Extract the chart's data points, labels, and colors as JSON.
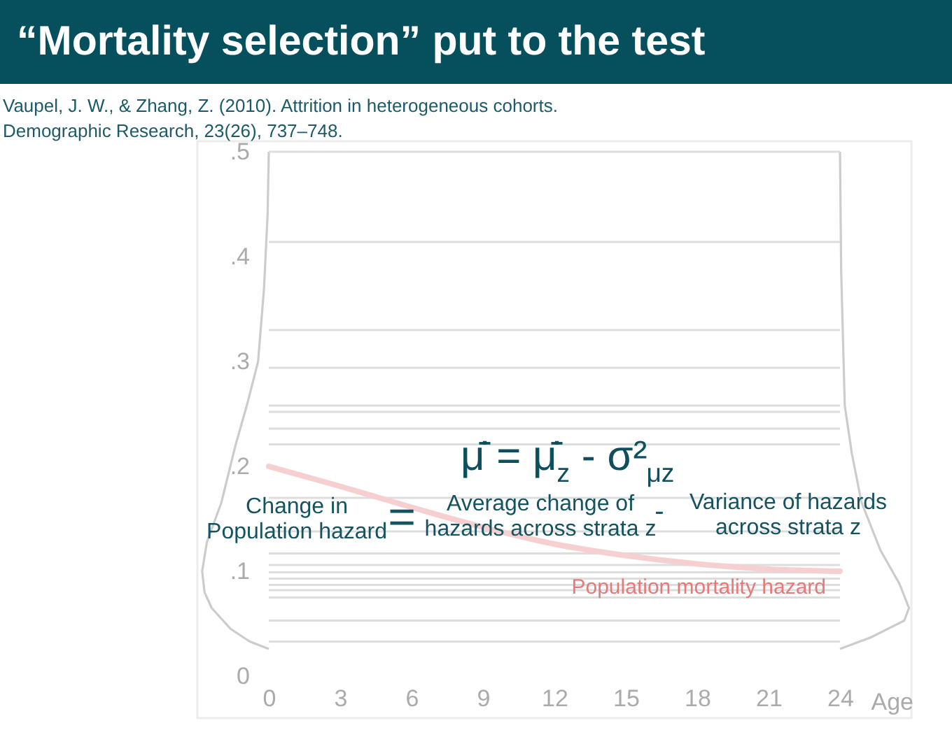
{
  "chart_data": {
    "type": "line",
    "title": "“Mortality selection” put to the test",
    "xlabel": "Age",
    "annotations": [
      "Vaupel, J. W., & Zhang, Z. (2010). Attrition in heterogeneous cohorts.\nDemographic Research, 23(26), 737–748.",
      "μ̄̇ = μ̇̄$_{z}$ - σ²$_{μz}$",
      "Change in\nPopulation hazard",
      "=",
      "Average change of\nhazards across strata z",
      "-",
      "Variance of hazards\nacross strata z"
    ],
    "xlim": [
      -3,
      27
    ],
    "ylim": [
      -0.04,
      0.51
    ],
    "xticks": [
      0,
      3,
      6,
      9,
      12,
      15,
      18,
      21,
      24
    ],
    "yticks": [
      0,
      {
        "value": 0.1,
        "label": ".1"
      },
      {
        "value": 0.2,
        "label": ".2"
      },
      {
        "value": 0.3,
        "label": ".3"
      },
      {
        "value": 0.4,
        "label": ".4"
      },
      {
        "value": 0.5,
        "label": ".5"
      }
    ],
    "grid": false,
    "legend": false,
    "marker": "none",
    "series": [
      {
        "color": "#cccccc",
        "x": [
          0,
          -0.05,
          -0.2,
          -0.45,
          -0.9,
          -1.4,
          -2.0,
          -2.6,
          -2.8,
          -2.7,
          -2.4,
          -1.6,
          -0.8,
          0
        ],
        "values": [
          0.5,
          0.44,
          0.37,
          0.3,
          0.26,
          0.22,
          0.165,
          0.128,
          0.1,
          0.08,
          0.065,
          0.045,
          0.033,
          0.026
        ]
      },
      {
        "color": "#cccccc",
        "x": [
          24,
          24.05,
          24.2,
          24.5,
          24.9,
          25.7,
          26.5,
          26.9,
          26.7,
          25.3,
          24
        ],
        "values": [
          0.5,
          0.386,
          0.258,
          0.212,
          0.166,
          0.12,
          0.088,
          0.065,
          0.053,
          0.037,
          0.026
        ]
      },
      {
        "color": "#dddddd",
        "x": [
          0,
          24
        ],
        "values": [
          0.5,
          0.5
        ]
      },
      {
        "color": "#dddddd",
        "x": [
          0,
          24
        ],
        "values": [
          0.414,
          0.414
        ]
      },
      {
        "color": "#dddddd",
        "x": [
          0,
          24
        ],
        "values": [
          0.33,
          0.33
        ]
      },
      {
        "color": "#dddddd",
        "x": [
          0,
          24
        ],
        "values": [
          0.294,
          0.294
        ]
      },
      {
        "color": "#dddddd",
        "x": [
          0,
          24
        ],
        "values": [
          0.258,
          0.258
        ]
      },
      {
        "color": "#dddddd",
        "x": [
          0,
          24
        ],
        "values": [
          0.252,
          0.252
        ]
      },
      {
        "color": "#dddddd",
        "x": [
          0,
          24
        ],
        "values": [
          0.236,
          0.236
        ]
      },
      {
        "color": "#dddddd",
        "x": [
          0,
          24
        ],
        "values": [
          0.221,
          0.221
        ]
      },
      {
        "color": "#dddddd",
        "x": [
          0,
          24
        ],
        "values": [
          0.17,
          0.17
        ]
      },
      {
        "color": "#dddddd",
        "x": [
          0,
          24
        ],
        "values": [
          0.138,
          0.138
        ]
      },
      {
        "color": "#dddddd",
        "x": [
          0,
          24
        ],
        "values": [
          0.117,
          0.117
        ]
      },
      {
        "color": "#dddddd",
        "x": [
          0,
          24
        ],
        "values": [
          0.106,
          0.106
        ]
      },
      {
        "color": "#dddddd",
        "x": [
          0,
          24
        ],
        "values": [
          0.099,
          0.099
        ]
      },
      {
        "color": "#dddddd",
        "x": [
          0,
          24
        ],
        "values": [
          0.093,
          0.093
        ]
      },
      {
        "color": "#dddddd",
        "x": [
          0,
          24
        ],
        "values": [
          0.087,
          0.087
        ]
      },
      {
        "color": "#dddddd",
        "x": [
          0,
          24
        ],
        "values": [
          0.082,
          0.082
        ]
      },
      {
        "color": "#dddddd",
        "x": [
          0,
          24
        ],
        "values": [
          0.075,
          0.075
        ]
      },
      {
        "color": "#dddddd",
        "x": [
          0,
          24
        ],
        "values": [
          0.053,
          0.053
        ]
      },
      {
        "color": "#dddddd",
        "x": [
          0,
          24
        ],
        "values": [
          0.033,
          0.033
        ]
      },
      {
        "name": "Population mortality hazard",
        "color": "#f6d0d0",
        "x": [
          0,
          3,
          6,
          9,
          12,
          15,
          18,
          21,
          24
        ],
        "values": [
          0.2,
          0.181,
          0.161,
          0.142,
          0.126,
          0.115,
          0.107,
          0.102,
          0.1
        ]
      }
    ]
  }
}
